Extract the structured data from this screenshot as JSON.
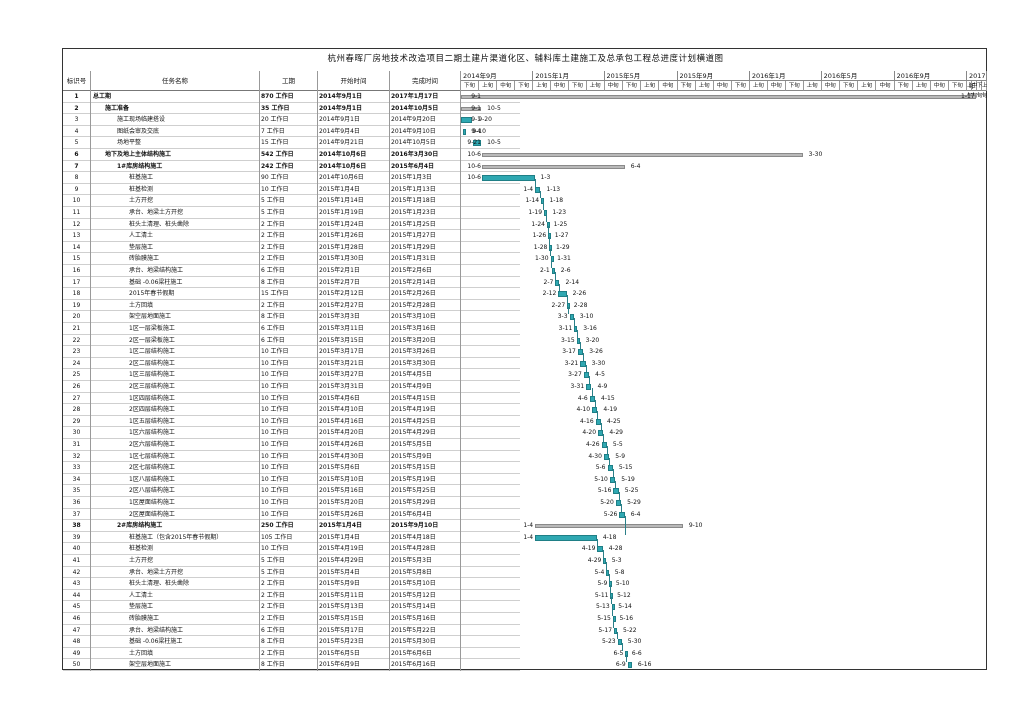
{
  "title": "杭州春晖厂房地技术改造项目二期土建片渠道化区、辅料库土建施工及总承包工程总进度计划横道图",
  "columns": {
    "id": "标识号",
    "name": "任务名称",
    "duration": "工期",
    "start": "开始时间",
    "end": "完成时间"
  },
  "timescale": {
    "years": [
      "2014年9月",
      "2015年1月",
      "2015年5月",
      "2015年9月",
      "2016年1月",
      "2016年5月",
      "2016年9月",
      "2017年"
    ],
    "periods": [
      "上旬",
      "中旬",
      "下旬"
    ]
  },
  "tasks": [
    {
      "id": "1",
      "name": "总工期",
      "dur": "870 工作日",
      "start": "2014年9月1日",
      "end": "2017年1月17日",
      "lvl": 0,
      "bold": true,
      "sum": true,
      "s": "2014-09-01",
      "e": "2017-01-17",
      "ls": "9-1",
      "le": "1-17"
    },
    {
      "id": "2",
      "name": "施工准备",
      "dur": "35 工作日",
      "start": "2014年9月1日",
      "end": "2014年10月5日",
      "lvl": 1,
      "bold": true,
      "sum": true,
      "s": "2014-09-01",
      "e": "2014-10-05",
      "ls": "9-1",
      "le": "10-5"
    },
    {
      "id": "3",
      "name": "施工现场临建搭设",
      "dur": "20 工作日",
      "start": "2014年9月1日",
      "end": "2014年9月20日",
      "lvl": 2,
      "s": "2014-09-01",
      "e": "2014-09-20",
      "ls": "9-1",
      "le": "9-20"
    },
    {
      "id": "4",
      "name": "图纸会审及交底",
      "dur": "7 工作日",
      "start": "2014年9月4日",
      "end": "2014年9月10日",
      "lvl": 2,
      "s": "2014-09-04",
      "e": "2014-09-10",
      "ls": "9-4",
      "le": "9-10"
    },
    {
      "id": "5",
      "name": "场地平整",
      "dur": "15 工作日",
      "start": "2014年9月21日",
      "end": "2014年10月5日",
      "lvl": 2,
      "s": "2014-09-21",
      "e": "2014-10-05",
      "ls": "9-21",
      "le": "10-5"
    },
    {
      "id": "6",
      "name": "地下及地上主体结构施工",
      "dur": "542 工作日",
      "start": "2014年10月6日",
      "end": "2016年3月30日",
      "lvl": 1,
      "bold": true,
      "sum": true,
      "s": "2014-10-06",
      "e": "2016-03-30",
      "ls": "10-6",
      "le": "3-30"
    },
    {
      "id": "7",
      "name": "1#库房结构施工",
      "dur": "242 工作日",
      "start": "2014年10月6日",
      "end": "2015年6月4日",
      "lvl": 2,
      "bold": true,
      "sum": true,
      "s": "2014-10-06",
      "e": "2015-06-04",
      "ls": "10-6",
      "le": "6-4"
    },
    {
      "id": "8",
      "name": "桩基施工",
      "dur": "90 工作日",
      "start": "2014年10月6日",
      "end": "2015年1月3日",
      "lvl": 3,
      "s": "2014-10-06",
      "e": "2015-01-03",
      "ls": "10-6",
      "le": "1-3"
    },
    {
      "id": "9",
      "name": "桩基检测",
      "dur": "10 工作日",
      "start": "2015年1月4日",
      "end": "2015年1月13日",
      "lvl": 3,
      "s": "2015-01-04",
      "e": "2015-01-13",
      "ls": "1-4",
      "le": "1-13"
    },
    {
      "id": "10",
      "name": "土方开挖",
      "dur": "5 工作日",
      "start": "2015年1月14日",
      "end": "2015年1月18日",
      "lvl": 3,
      "s": "2015-01-14",
      "e": "2015-01-18",
      "ls": "1-14",
      "le": "1-18"
    },
    {
      "id": "11",
      "name": "承台、地梁土方开挖",
      "dur": "5 工作日",
      "start": "2015年1月19日",
      "end": "2015年1月23日",
      "lvl": 3,
      "s": "2015-01-19",
      "e": "2015-01-23",
      "ls": "1-19",
      "le": "1-23"
    },
    {
      "id": "12",
      "name": "桩头土清理、桩头凿除",
      "dur": "2 工作日",
      "start": "2015年1月24日",
      "end": "2015年1月25日",
      "lvl": 3,
      "s": "2015-01-24",
      "e": "2015-01-25",
      "ls": "1-24",
      "le": "1-25"
    },
    {
      "id": "13",
      "name": "人工清土",
      "dur": "2 工作日",
      "start": "2015年1月26日",
      "end": "2015年1月27日",
      "lvl": 3,
      "s": "2015-01-26",
      "e": "2015-01-27",
      "ls": "1-26",
      "le": "1-27"
    },
    {
      "id": "14",
      "name": "垫层施工",
      "dur": "2 工作日",
      "start": "2015年1月28日",
      "end": "2015年1月29日",
      "lvl": 3,
      "s": "2015-01-28",
      "e": "2015-01-29",
      "ls": "1-28",
      "le": "1-29"
    },
    {
      "id": "15",
      "name": "砖胎膜施工",
      "dur": "2 工作日",
      "start": "2015年1月30日",
      "end": "2015年1月31日",
      "lvl": 3,
      "s": "2015-01-30",
      "e": "2015-01-31",
      "ls": "1-30",
      "le": "1-31"
    },
    {
      "id": "16",
      "name": "承台、地梁结构施工",
      "dur": "6 工作日",
      "start": "2015年2月1日",
      "end": "2015年2月6日",
      "lvl": 3,
      "s": "2015-02-01",
      "e": "2015-02-06",
      "ls": "2-1",
      "le": "2-6"
    },
    {
      "id": "17",
      "name": "基础 -0.06梁柱施工",
      "dur": "8 工作日",
      "start": "2015年2月7日",
      "end": "2015年2月14日",
      "lvl": 3,
      "s": "2015-02-07",
      "e": "2015-02-14",
      "ls": "2-7",
      "le": "2-14"
    },
    {
      "id": "18",
      "name": "2015年春节假期",
      "dur": "15 工作日",
      "start": "2015年2月12日",
      "end": "2015年2月26日",
      "lvl": 3,
      "s": "2015-02-12",
      "e": "2015-02-26",
      "ls": "2-12",
      "le": "2-26"
    },
    {
      "id": "19",
      "name": "土方回填",
      "dur": "2 工作日",
      "start": "2015年2月27日",
      "end": "2015年2月28日",
      "lvl": 3,
      "s": "2015-02-27",
      "e": "2015-02-28",
      "ls": "2-27",
      "le": "2-28"
    },
    {
      "id": "20",
      "name": "架空层地面施工",
      "dur": "8 工作日",
      "start": "2015年3月3日",
      "end": "2015年3月10日",
      "lvl": 3,
      "s": "2015-03-03",
      "e": "2015-03-10",
      "ls": "3-3",
      "le": "3-10"
    },
    {
      "id": "21",
      "name": "1区一层梁板施工",
      "dur": "6 工作日",
      "start": "2015年3月11日",
      "end": "2015年3月16日",
      "lvl": 3,
      "s": "2015-03-11",
      "e": "2015-03-16",
      "ls": "3-11",
      "le": "3-16"
    },
    {
      "id": "22",
      "name": "2区一层梁板施工",
      "dur": "6 工作日",
      "start": "2015年3月15日",
      "end": "2015年3月20日",
      "lvl": 3,
      "s": "2015-03-15",
      "e": "2015-03-20",
      "ls": "3-15",
      "le": "3-20"
    },
    {
      "id": "23",
      "name": "1区二层结构施工",
      "dur": "10 工作日",
      "start": "2015年3月17日",
      "end": "2015年3月26日",
      "lvl": 3,
      "s": "2015-03-17",
      "e": "2015-03-26",
      "ls": "3-17",
      "le": "3-26"
    },
    {
      "id": "24",
      "name": "2区二层结构施工",
      "dur": "10 工作日",
      "start": "2015年3月21日",
      "end": "2015年3月30日",
      "lvl": 3,
      "s": "2015-03-21",
      "e": "2015-03-30",
      "ls": "3-21",
      "le": "3-30"
    },
    {
      "id": "25",
      "name": "1区三层结构施工",
      "dur": "10 工作日",
      "start": "2015年3月27日",
      "end": "2015年4月5日",
      "lvl": 3,
      "s": "2015-03-27",
      "e": "2015-04-05",
      "ls": "3-27",
      "le": "4-5"
    },
    {
      "id": "26",
      "name": "2区三层结构施工",
      "dur": "10 工作日",
      "start": "2015年3月31日",
      "end": "2015年4月9日",
      "lvl": 3,
      "s": "2015-03-31",
      "e": "2015-04-09",
      "ls": "3-31",
      "le": "4-9"
    },
    {
      "id": "27",
      "name": "1区四层结构施工",
      "dur": "10 工作日",
      "start": "2015年4月6日",
      "end": "2015年4月15日",
      "lvl": 3,
      "s": "2015-04-06",
      "e": "2015-04-15",
      "ls": "4-6",
      "le": "4-15"
    },
    {
      "id": "28",
      "name": "2区四层结构施工",
      "dur": "10 工作日",
      "start": "2015年4月10日",
      "end": "2015年4月19日",
      "lvl": 3,
      "s": "2015-04-10",
      "e": "2015-04-19",
      "ls": "4-10",
      "le": "4-19"
    },
    {
      "id": "29",
      "name": "1区五层结构施工",
      "dur": "10 工作日",
      "start": "2015年4月16日",
      "end": "2015年4月25日",
      "lvl": 3,
      "s": "2015-04-16",
      "e": "2015-04-25",
      "ls": "4-16",
      "le": "4-25"
    },
    {
      "id": "30",
      "name": "1区六层结构施工",
      "dur": "10 工作日",
      "start": "2015年4月20日",
      "end": "2015年4月29日",
      "lvl": 3,
      "s": "2015-04-20",
      "e": "2015-04-29",
      "ls": "4-20",
      "le": "4-29"
    },
    {
      "id": "31",
      "name": "2区六层结构施工",
      "dur": "10 工作日",
      "start": "2015年4月26日",
      "end": "2015年5月5日",
      "lvl": 3,
      "s": "2015-04-26",
      "e": "2015-05-05",
      "ls": "4-26",
      "le": "5-5"
    },
    {
      "id": "32",
      "name": "1区七层结构施工",
      "dur": "10 工作日",
      "start": "2015年4月30日",
      "end": "2015年5月9日",
      "lvl": 3,
      "s": "2015-04-30",
      "e": "2015-05-09",
      "ls": "4-30",
      "le": "5-9"
    },
    {
      "id": "33",
      "name": "2区七层结构施工",
      "dur": "10 工作日",
      "start": "2015年5月6日",
      "end": "2015年5月15日",
      "lvl": 3,
      "s": "2015-05-06",
      "e": "2015-05-15",
      "ls": "5-6",
      "le": "5-15"
    },
    {
      "id": "34",
      "name": "1区八层结构施工",
      "dur": "10 工作日",
      "start": "2015年5月10日",
      "end": "2015年5月19日",
      "lvl": 3,
      "s": "2015-05-10",
      "e": "2015-05-19",
      "ls": "5-10",
      "le": "5-19"
    },
    {
      "id": "35",
      "name": "2区八层结构施工",
      "dur": "10 工作日",
      "start": "2015年5月16日",
      "end": "2015年5月25日",
      "lvl": 3,
      "s": "2015-05-16",
      "e": "2015-05-25",
      "ls": "5-16",
      "le": "5-25"
    },
    {
      "id": "36",
      "name": "1区屋面结构施工",
      "dur": "10 工作日",
      "start": "2015年5月20日",
      "end": "2015年5月29日",
      "lvl": 3,
      "s": "2015-05-20",
      "e": "2015-05-29",
      "ls": "5-20",
      "le": "5-29"
    },
    {
      "id": "37",
      "name": "2区屋面结构施工",
      "dur": "10 工作日",
      "start": "2015年5月26日",
      "end": "2015年6月4日",
      "lvl": 3,
      "s": "2015-05-26",
      "e": "2015-06-04",
      "ls": "5-26",
      "le": "6-4"
    },
    {
      "id": "38",
      "name": "2#库房结构施工",
      "dur": "250 工作日",
      "start": "2015年1月4日",
      "end": "2015年9月10日",
      "lvl": 2,
      "bold": true,
      "sum": true,
      "s": "2015-01-04",
      "e": "2015-09-10",
      "ls": "1-4",
      "le": "9-10"
    },
    {
      "id": "39",
      "name": "桩基施工（包含2015年春节假期）",
      "dur": "105 工作日",
      "start": "2015年1月4日",
      "end": "2015年4月18日",
      "lvl": 3,
      "s": "2015-01-04",
      "e": "2015-04-18",
      "ls": "1-4",
      "le": "4-18"
    },
    {
      "id": "40",
      "name": "桩基检测",
      "dur": "10 工作日",
      "start": "2015年4月19日",
      "end": "2015年4月28日",
      "lvl": 3,
      "s": "2015-04-19",
      "e": "2015-04-28",
      "ls": "4-19",
      "le": "4-28"
    },
    {
      "id": "41",
      "name": "土方开挖",
      "dur": "5 工作日",
      "start": "2015年4月29日",
      "end": "2015年5月3日",
      "lvl": 3,
      "s": "2015-04-29",
      "e": "2015-05-03",
      "ls": "4-29",
      "le": "5-3"
    },
    {
      "id": "42",
      "name": "承台、地梁土方开挖",
      "dur": "5 工作日",
      "start": "2015年5月4日",
      "end": "2015年5月8日",
      "lvl": 3,
      "s": "2015-05-04",
      "e": "2015-05-08",
      "ls": "5-4",
      "le": "5-8"
    },
    {
      "id": "43",
      "name": "桩头土清理、桩头凿除",
      "dur": "2 工作日",
      "start": "2015年5月9日",
      "end": "2015年5月10日",
      "lvl": 3,
      "s": "2015-05-09",
      "e": "2015-05-10",
      "ls": "5-9",
      "le": "5-10"
    },
    {
      "id": "44",
      "name": "人工清土",
      "dur": "2 工作日",
      "start": "2015年5月11日",
      "end": "2015年5月12日",
      "lvl": 3,
      "s": "2015-05-11",
      "e": "2015-05-12",
      "ls": "5-11",
      "le": "5-12"
    },
    {
      "id": "45",
      "name": "垫层施工",
      "dur": "2 工作日",
      "start": "2015年5月13日",
      "end": "2015年5月14日",
      "lvl": 3,
      "s": "2015-05-13",
      "e": "2015-05-14",
      "ls": "5-13",
      "le": "5-14"
    },
    {
      "id": "46",
      "name": "砖胎膜施工",
      "dur": "2 工作日",
      "start": "2015年5月15日",
      "end": "2015年5月16日",
      "lvl": 3,
      "s": "2015-05-15",
      "e": "2015-05-16",
      "ls": "5-15",
      "le": "5-16"
    },
    {
      "id": "47",
      "name": "承台、地梁结构施工",
      "dur": "6 工作日",
      "start": "2015年5月17日",
      "end": "2015年5月22日",
      "lvl": 3,
      "s": "2015-05-17",
      "e": "2015-05-22",
      "ls": "5-17",
      "le": "5-22"
    },
    {
      "id": "48",
      "name": "基础 -0.06梁柱施工",
      "dur": "8 工作日",
      "start": "2015年5月23日",
      "end": "2015年5月30日",
      "lvl": 3,
      "s": "2015-05-23",
      "e": "2015-05-30",
      "ls": "5-23",
      "le": "5-30"
    },
    {
      "id": "49",
      "name": "土方回填",
      "dur": "2 工作日",
      "start": "2015年6月5日",
      "end": "2015年6月6日",
      "lvl": 3,
      "s": "2015-06-05",
      "e": "2015-06-06",
      "ls": "6-5",
      "le": "6-6"
    },
    {
      "id": "50",
      "name": "架空层地面施工",
      "dur": "8 工作日",
      "start": "2015年6月9日",
      "end": "2015年6月16日",
      "lvl": 3,
      "s": "2015-06-09",
      "e": "2015-06-16",
      "ls": "6-9",
      "le": "6-16"
    }
  ],
  "colors": {
    "task_bar": "#2fa8b2",
    "summary_bar": "#b9b9b9",
    "link": "#2b7f88"
  }
}
